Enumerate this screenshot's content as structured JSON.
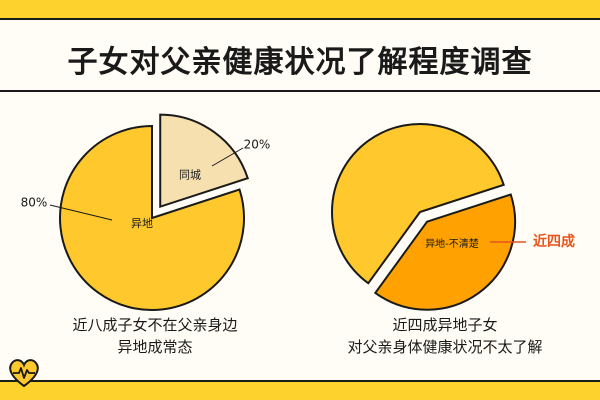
{
  "title": "子女对父亲健康状况了解程度调查",
  "chart_data": [
    {
      "type": "pie",
      "slices": [
        {
          "label": "异地",
          "value": 80,
          "value_label": "80%",
          "color": "#ffc92d"
        },
        {
          "label": "同城",
          "value": 20,
          "value_label": "20%",
          "color": "#f6e0b0",
          "exploded": true
        }
      ]
    },
    {
      "type": "pie",
      "slices": [
        {
          "label": "",
          "value": 60,
          "color": "#ffc92d"
        },
        {
          "label": "异地-不清楚",
          "value": 40,
          "color": "#ffa100",
          "exploded": true,
          "callout": "近四成",
          "callout_color": "#e8541a"
        }
      ]
    }
  ],
  "captions": {
    "left": [
      "近八成子女不在父亲身边",
      "异地成常态"
    ],
    "right": [
      "近四成异地子女",
      "对父亲身体健康状况不太了解"
    ]
  }
}
